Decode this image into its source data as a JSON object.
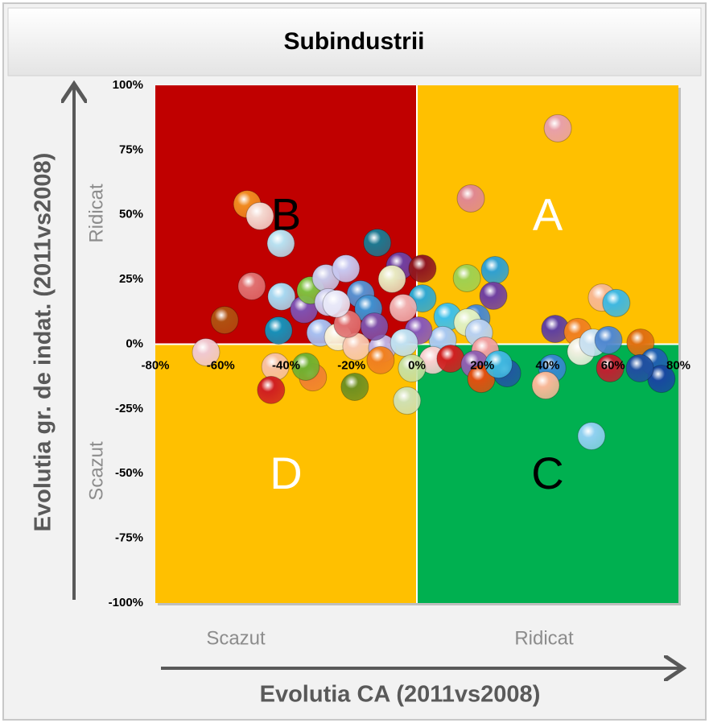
{
  "chart_data": {
    "type": "scatter",
    "title": "Subindustrii",
    "x_label": "Evolutia CA (2011vs2008)",
    "y_label": "Evolutia gr. de indat. (2011vs2008)",
    "x_low_label": "Scazut",
    "x_high_label": "Ridicat",
    "y_low_label": "Scazut",
    "y_high_label": "Ridicat",
    "quadrants": [
      {
        "label": "B",
        "color": "#c00000",
        "text_color": "#000000"
      },
      {
        "label": "A",
        "color": "#ffc000",
        "text_color": "#ffffff"
      },
      {
        "label": "D",
        "color": "#ffc000",
        "text_color": "#ffffff"
      },
      {
        "label": "C",
        "color": "#00b050",
        "text_color": "#000000"
      }
    ],
    "xlim": [
      -80,
      80
    ],
    "ylim": [
      -100,
      100
    ],
    "xticks": [
      {
        "value": -80,
        "label": "-80%"
      },
      {
        "value": -60,
        "label": "-60%"
      },
      {
        "value": -40,
        "label": "-40%"
      },
      {
        "value": -20,
        "label": "-20%"
      },
      {
        "value": 0,
        "label": "0%"
      },
      {
        "value": 20,
        "label": "20%"
      },
      {
        "value": 40,
        "label": "40%"
      },
      {
        "value": 60,
        "label": "60%"
      },
      {
        "value": 80,
        "label": "80%"
      }
    ],
    "yticks": [
      {
        "value": -100,
        "label": "-100%"
      },
      {
        "value": -75,
        "label": "-75%"
      },
      {
        "value": -50,
        "label": "-50%"
      },
      {
        "value": -25,
        "label": "-25%"
      },
      {
        "value": 0,
        "label": "0%"
      },
      {
        "value": 25,
        "label": "25%"
      },
      {
        "value": 50,
        "label": "50%"
      },
      {
        "value": 75,
        "label": "75%"
      },
      {
        "value": 100,
        "label": "100%"
      }
    ],
    "x": [
      43.1,
      16.5,
      -51.9,
      -48.0,
      -41.6,
      -12.1,
      -50.5,
      -58.8,
      -64.5,
      -41.4,
      -42.3,
      -34.5,
      -32.5,
      -27.8,
      -21.7,
      -27.1,
      -17.2,
      -5.2,
      1.7,
      -7.6,
      1.7,
      -4.2,
      -14.8,
      9.4,
      15.3,
      23.9,
      23.4,
      18.2,
      15.5,
      19.0,
      7.9,
      0.5,
      -29.5,
      -24.1,
      -18.5,
      -10.6,
      -3.9,
      4.9,
      -1.5,
      10.3,
      20.9,
      17.7,
      19.7,
      27.6,
      25.0,
      -3.0,
      -19.0,
      -31.8,
      -34.0,
      -43.3,
      -44.6,
      -11.1,
      42.3,
      49.2,
      50.2,
      53.9,
      58.6,
      56.6,
      61.0,
      68.4,
      72.6,
      74.8,
      68.2,
      59.1,
      41.4,
      39.4,
      53.4,
      -21.2,
      -13.0,
      -24.6
    ],
    "y": [
      83.4,
      56.3,
      54.1,
      49.5,
      38.9,
      39.2,
      22.4,
      9.3,
      -3.1,
      18.4,
      5.3,
      13.4,
      20.8,
      25.5,
      29.2,
      16.2,
      19.3,
      30.2,
      29.2,
      25.2,
      17.7,
      14.0,
      13.7,
      10.6,
      25.5,
      28.6,
      18.7,
      10.0,
      8.4,
      4.4,
      1.6,
      5.3,
      4.4,
      2.8,
      -0.9,
      -1.6,
      0.6,
      -6.2,
      -9.3,
      -5.6,
      -2.5,
      -7.8,
      -13.4,
      -11.2,
      -7.8,
      -21.8,
      -16.5,
      -12.8,
      -8.7,
      -8.7,
      -17.7,
      -6.2,
      5.9,
      4.7,
      -2.8,
      0.6,
      1.6,
      18.0,
      15.9,
      0.6,
      -6.8,
      -13.4,
      -9.3,
      -9.3,
      -9.3,
      -15.9,
      -35.5,
      7.8,
      6.8,
      15.6
    ],
    "colors": [
      "#e8a0a8",
      "#e08890",
      "#f08a20",
      "#f4d8d0",
      "#b8e0f0",
      "#1e7890",
      "#e07070",
      "#b05010",
      "#f0c8d0",
      "#a8d8f0",
      "#1890b8",
      "#8050b0",
      "#80c040",
      "#c8c8e8",
      "#c8c8f0",
      "#d0d0f0",
      "#5890d0",
      "#7040a0",
      "#901820",
      "#e8e8c0",
      "#30a8d0",
      "#f0b0b0",
      "#4090d0",
      "#40c0e8",
      "#a0d050",
      "#30a0d0",
      "#7040a0",
      "#4888d0",
      "#e0f0c0",
      "#b8d0f0",
      "#a8c8f0",
      "#8858b8",
      "#a8c0f0",
      "#f8f0d8",
      "#f8c8b0",
      "#c0b0e0",
      "#c0e0f0",
      "#f8d0d0",
      "#c8e0a0",
      "#d02020",
      "#f0a0a0",
      "#9060b0",
      "#e05010",
      "#2058a0",
      "#40b8e0",
      "#d0e0b0",
      "#709020",
      "#f08030",
      "#70b030",
      "#f8c0a0",
      "#d02020",
      "#f08020",
      "#6040a0",
      "#f08020",
      "#f0f0e0",
      "#c8e0f0",
      "#5088d0",
      "#f8b890",
      "#40b8e0",
      "#e07010",
      "#2060b0",
      "#1848a0",
      "#2050a0",
      "#c02030",
      "#3888d0",
      "#f8b898",
      "#90d0f0",
      "#e07070",
      "#8050a8",
      "#e8e8f8"
    ],
    "grid": false
  }
}
